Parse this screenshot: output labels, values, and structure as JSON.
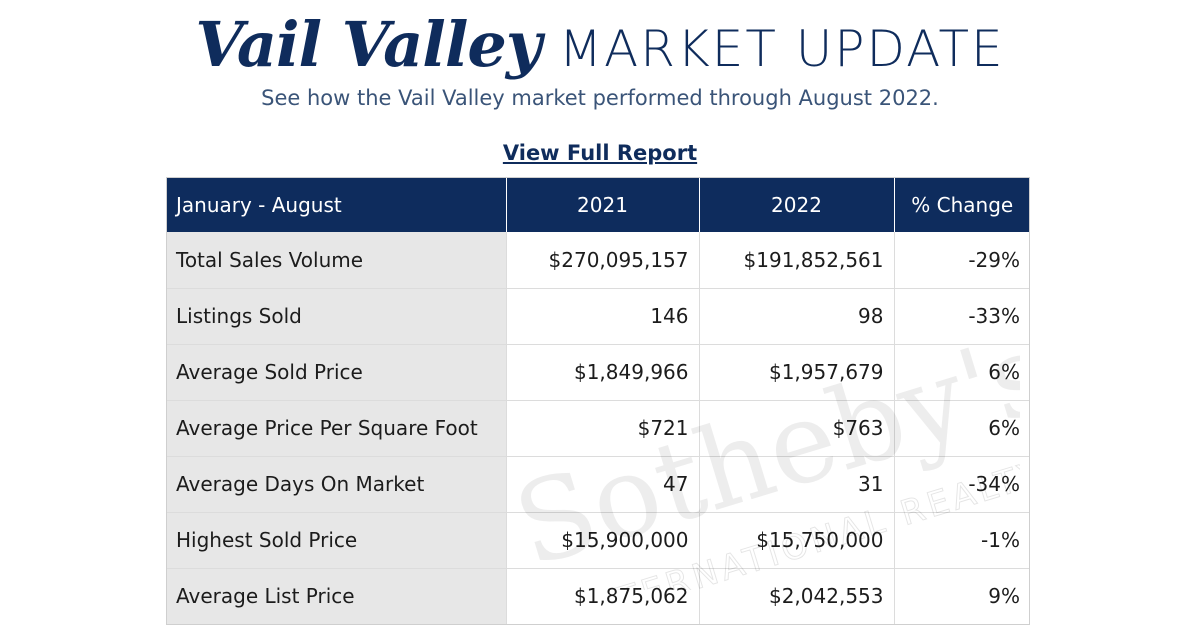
{
  "header": {
    "title_script": "Vail Valley",
    "title_caps": "MARKET UPDATE",
    "subtitle": "See how the Vail Valley market performed through August 2022.",
    "report_link": "View Full Report"
  },
  "table": {
    "columns": [
      "January - August",
      "2021",
      "2022",
      "% Change"
    ],
    "rows": [
      {
        "metric": "Total Sales Volume",
        "y2021": "$270,095,157",
        "y2022": "$191,852,561",
        "change": "-29%"
      },
      {
        "metric": "Listings Sold",
        "y2021": "146",
        "y2022": "98",
        "change": "-33%"
      },
      {
        "metric": "Average Sold Price",
        "y2021": "$1,849,966",
        "y2022": "$1,957,679",
        "change": "6%"
      },
      {
        "metric": "Average Price Per Square Foot",
        "y2021": "$721",
        "y2022": "$763",
        "change": "6%"
      },
      {
        "metric": "Average Days On Market",
        "y2021": "47",
        "y2022": "31",
        "change": "-34%"
      },
      {
        "metric": "Highest Sold Price",
        "y2021": "$15,900,000",
        "y2022": "$15,750,000",
        "change": "-1%"
      },
      {
        "metric": "Average List Price",
        "y2021": "$1,875,062",
        "y2022": "$2,042,553",
        "change": "9%"
      }
    ]
  },
  "watermark": {
    "brand": "Sotheby's",
    "tagline": "INTERNATIONAL REALTY"
  },
  "colors": {
    "navy": "#0e2c5d",
    "label_bg": "#e7e7e7"
  }
}
